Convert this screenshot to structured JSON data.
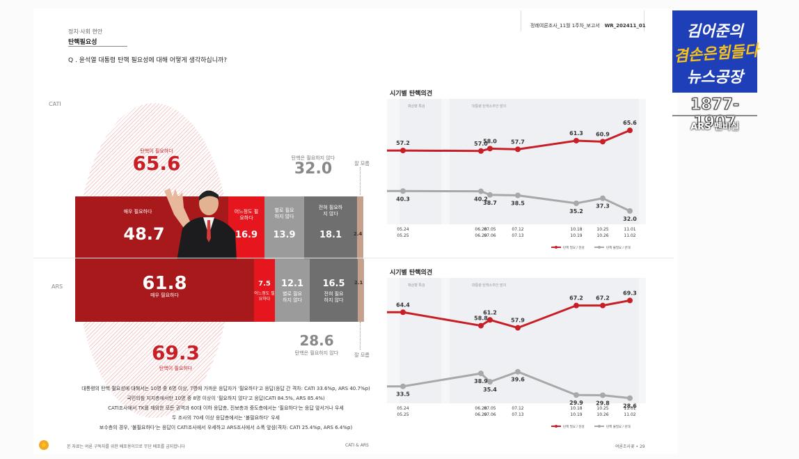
{
  "header": {
    "report": "정례여론조사_11월 1주차_보고서",
    "code": "WR_202411_01",
    "section_small": "정치·사회 현안",
    "section_title": "탄핵필요성",
    "question": "Q . 윤석열 대통령 탄핵 필요성에 대해 어떻게 생각하십니까?"
  },
  "colors": {
    "strong_need": "#a8191b",
    "some_need": "#e5161d",
    "not_much": "#9b9b9b",
    "not_at_all": "#6f6f6f",
    "dont_know": "#c5a08c",
    "need_series": "#c81e25",
    "noneed_series": "#a8a8a8"
  },
  "cati": {
    "label": "CATI",
    "need_total_label": "탄핵이 필요하다",
    "need_total": "65.6",
    "noneed_total_label": "탄핵은 필요하지 않다",
    "noneed_total": "32.0",
    "dont_know_label": "잘 모름",
    "segments": [
      {
        "label": "매우 필요하다",
        "value": "48.7"
      },
      {
        "label": "어느정도 필요하다",
        "value": "16.9"
      },
      {
        "label": "별로 필요하지 않다",
        "value": "13.9"
      },
      {
        "label": "전혀 필요하지 않다",
        "value": "18.1"
      },
      {
        "label": "",
        "value": "2.4"
      }
    ]
  },
  "ars": {
    "label": "ARS",
    "need_total_label": "탄핵이 필요하다",
    "need_total": "69.3",
    "noneed_total_label": "탄핵은 필요하지 않다",
    "noneed_total": "28.6",
    "dont_know_label": "잘 모름",
    "segments": [
      {
        "label": "매우 필요하다",
        "value": "61.8"
      },
      {
        "label": "어느정도 필요하다",
        "value": "7.5"
      },
      {
        "label": "별로 필요하지 않다",
        "value": "12.1"
      },
      {
        "label": "전혀 필요하지 않다",
        "value": "16.5"
      },
      {
        "label": "",
        "value": "2.1"
      }
    ]
  },
  "chart_data": [
    {
      "type": "line",
      "title": "시기별 탄핵의견",
      "band_labels": [
        "채상병 특검",
        "대통령 탄핵소추안 발의"
      ],
      "x": [
        "05.24-05.25",
        "06.28-06.29",
        "07.05-07.06",
        "07.12-07.13",
        "10.18-10.19",
        "10.25-10.26",
        "11.01-11.02"
      ],
      "x_top": [
        "05.24",
        "06.28",
        "07.05",
        "07.12",
        "10.18",
        "10.25",
        "11.01"
      ],
      "x_bottom": [
        "05.25",
        "06.29",
        "07.06",
        "07.13",
        "10.19",
        "10.26",
        "11.02"
      ],
      "series": [
        {
          "name": "탄핵 필요 / 찬성",
          "values": [
            57.2,
            57.0,
            58.0,
            57.7,
            61.3,
            60.9,
            65.6
          ]
        },
        {
          "name": "탄핵 불필요 / 반대",
          "values": [
            40.3,
            40.2,
            38.7,
            38.5,
            35.2,
            37.3,
            32.0
          ]
        }
      ]
    },
    {
      "type": "line",
      "title": "시기별 탄핵의견",
      "band_labels": [
        "채상병 특검",
        "대통령 탄핵소추안 발의"
      ],
      "x": [
        "05.24-05.25",
        "06.28-06.29",
        "07.05-07.06",
        "07.12-07.13",
        "10.18-10.19",
        "10.25-10.26",
        "11.01-11.02"
      ],
      "x_top": [
        "05.24",
        "06.28",
        "07.05",
        "07.12",
        "10.18",
        "10.25",
        "11.01"
      ],
      "x_bottom": [
        "05.25",
        "06.29",
        "07.06",
        "07.13",
        "10.19",
        "10.26",
        "11.02"
      ],
      "series": [
        {
          "name": "탄핵 필요 / 찬성",
          "values": [
            64.4,
            58.8,
            61.2,
            57.9,
            67.2,
            67.2,
            69.3
          ]
        },
        {
          "name": "탄핵 불필요 / 반대",
          "values": [
            33.5,
            38.9,
            35.4,
            39.6,
            29.9,
            29.8,
            28.6
          ]
        }
      ]
    }
  ],
  "notes": [
    "대통령의 탄핵 필요성에 대해서는 10명 중 6명 이상, 7명에 가까운 응답자가 '필요하다'고 응답(응답 간 격차: CATI 33.6%p, ARS 40.7%p)",
    "국민의힘 지지층에서만 10명 중 8명 이상이 '필요하지 않다'고 응답(CATI 84.5%, ARS 85.4%)",
    "CATI조사에서 TK를 제외한 모든 권역과 60대 이하 응답층, 진보층과 중도층에서는 '필요하다'는 응답 앞서거나 우세",
    "두 조사의 70세 이상 응답층에서는 '불필요하다' 우세",
    "보수층의 경우, '불필요하다'는 응답이 CATI조사에서 우세하고 ARS조사에서 소폭 앞섬(격차: CATI 25.4%p, ARS 6.4%p)"
  ],
  "footer": {
    "left": "본 자료는 여론 구독자를 위한 배포용이므로 무단 배포를 금지합니다",
    "center": "CATI & ARS",
    "right": "여론조사꽃 • 29"
  },
  "logo": {
    "line1": "김어준의",
    "line2": "겸손은힘들다",
    "line3": "뉴스공장",
    "phone": "1877-1907",
    "ars": "ARS 펜비실"
  }
}
